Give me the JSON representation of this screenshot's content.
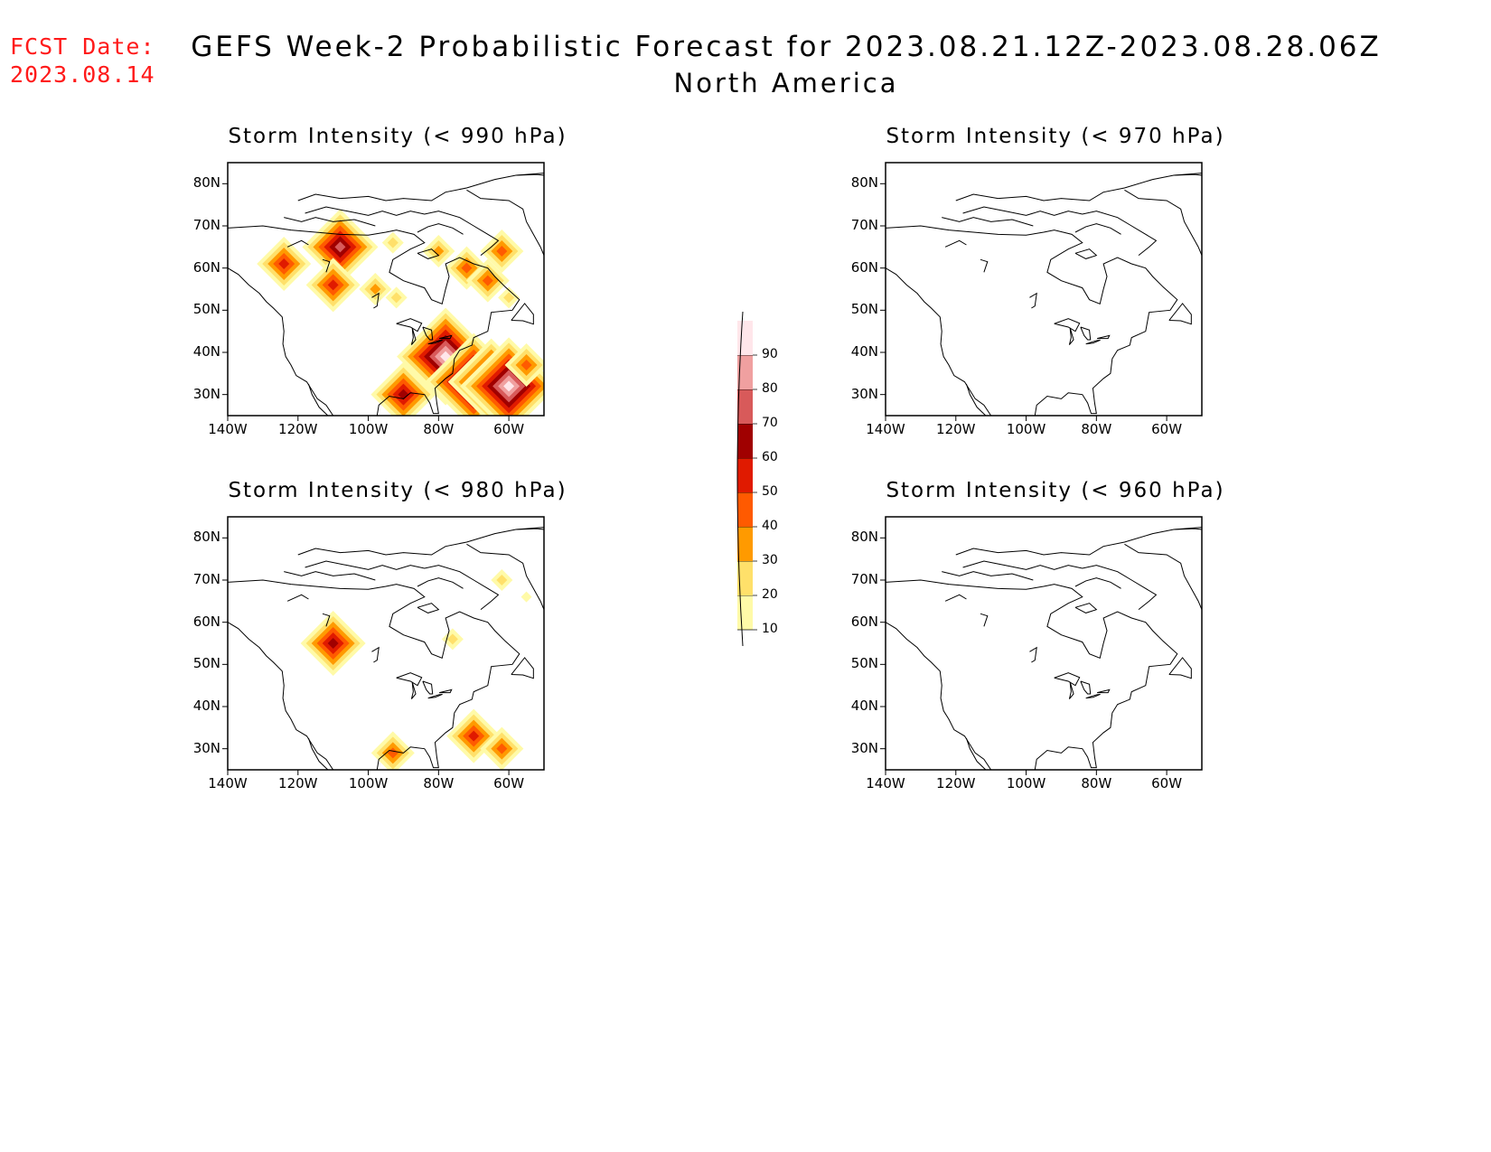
{
  "header": {
    "fcst_label": "FCST Date:",
    "fcst_date": "2023.08.14",
    "title": "GEFS Week-2 Probabilistic Forecast for 2023.08.21.12Z-2023.08.28.06Z",
    "subtitle": "North America"
  },
  "lat_labels": [
    "80N",
    "70N",
    "60N",
    "50N",
    "40N",
    "30N"
  ],
  "lon_labels": [
    "140W",
    "120W",
    "100W",
    "80W",
    "60W"
  ],
  "panels": [
    {
      "title": "Storm Intensity (< 990 hPa)"
    },
    {
      "title": "Storm Intensity (< 970 hPa)"
    },
    {
      "title": "Storm Intensity (< 980 hPa)"
    },
    {
      "title": "Storm Intensity (< 960 hPa)"
    }
  ],
  "colorbar": {
    "levels": [
      "10",
      "20",
      "30",
      "40",
      "50",
      "60",
      "70",
      "80",
      "90"
    ],
    "colors": [
      "#fffaa8",
      "#ffe06a",
      "#ff9a00",
      "#ff5a00",
      "#e01a00",
      "#a00000",
      "#d85a5a",
      "#f0a0a0",
      "#ffe6ea"
    ]
  },
  "chart_data": {
    "type": "map",
    "domain": {
      "lon": [
        -140,
        -50
      ],
      "lat": [
        25,
        85
      ]
    },
    "fields": [
      {
        "panel": "Storm Intensity (< 990 hPa)",
        "probability_blobs": [
          {
            "lon": -108,
            "lat": 65,
            "peak": 70
          },
          {
            "lon": -124,
            "lat": 61,
            "peak": 50
          },
          {
            "lon": -110,
            "lat": 56,
            "peak": 50
          },
          {
            "lon": -98,
            "lat": 55,
            "peak": 30
          },
          {
            "lon": -92,
            "lat": 53,
            "peak": 20
          },
          {
            "lon": -93,
            "lat": 66,
            "peak": 20
          },
          {
            "lon": -80,
            "lat": 64,
            "peak": 30
          },
          {
            "lon": -72,
            "lat": 60,
            "peak": 40
          },
          {
            "lon": -62,
            "lat": 64,
            "peak": 40
          },
          {
            "lon": -66,
            "lat": 57,
            "peak": 40
          },
          {
            "lon": -60,
            "lat": 53,
            "peak": 20
          },
          {
            "lon": -78,
            "lat": 39,
            "peak": 90
          },
          {
            "lon": -90,
            "lat": 30,
            "peak": 60
          },
          {
            "lon": -70,
            "lat": 33,
            "peak": 90
          },
          {
            "lon": -65,
            "lat": 33,
            "peak": 80
          },
          {
            "lon": -60,
            "lat": 32,
            "peak": 90
          },
          {
            "lon": -55,
            "lat": 37,
            "peak": 40
          }
        ]
      },
      {
        "panel": "Storm Intensity (< 970 hPa)",
        "probability_blobs": []
      },
      {
        "panel": "Storm Intensity (< 980 hPa)",
        "probability_blobs": [
          {
            "lon": -110,
            "lat": 55,
            "peak": 60
          },
          {
            "lon": -76,
            "lat": 56,
            "peak": 20
          },
          {
            "lon": -62,
            "lat": 70,
            "peak": 20
          },
          {
            "lon": -55,
            "lat": 66,
            "peak": 10
          },
          {
            "lon": -93,
            "lat": 29,
            "peak": 40
          },
          {
            "lon": -70,
            "lat": 33,
            "peak": 50
          },
          {
            "lon": -62,
            "lat": 30,
            "peak": 40
          }
        ]
      },
      {
        "panel": "Storm Intensity (< 960 hPa)",
        "probability_blobs": []
      }
    ]
  }
}
